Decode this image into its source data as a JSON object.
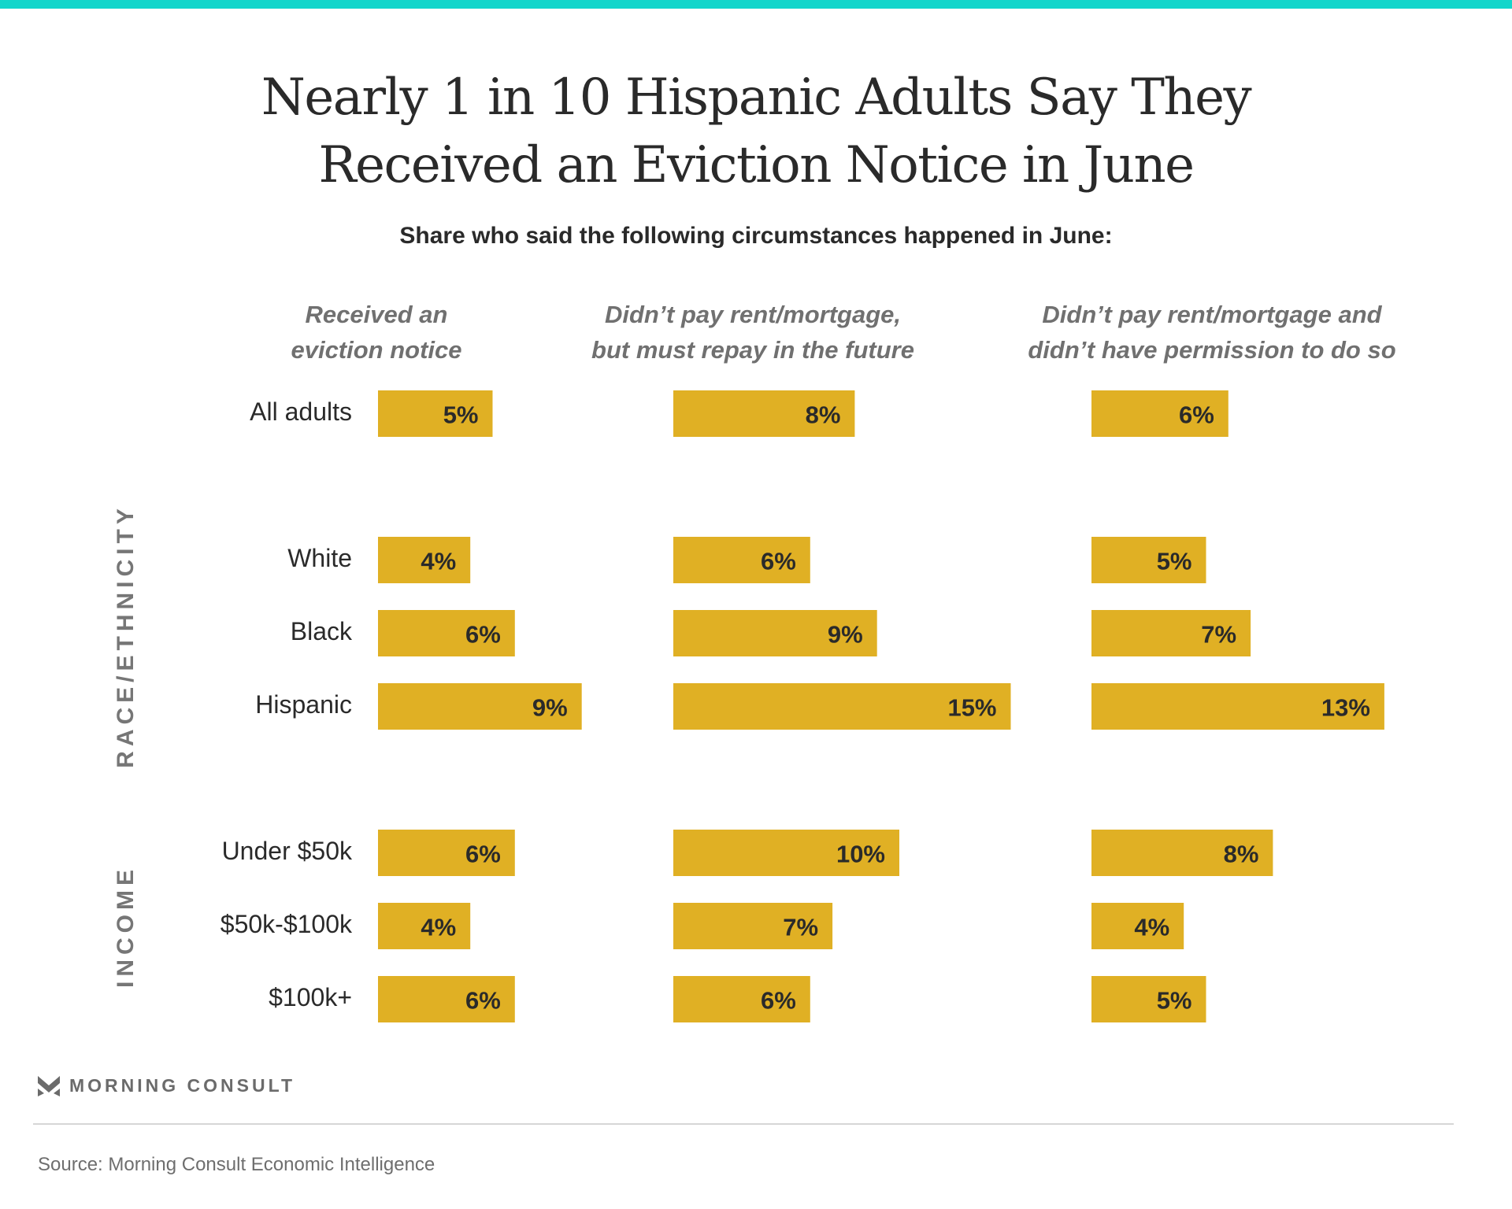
{
  "header": {
    "title_line1": "Nearly 1 in 10 Hispanic Adults Say They",
    "title_line2": "Received an Eviction Notice in June",
    "subtitle": "Share who said the following circumstances happened in June:"
  },
  "colors": {
    "accent_bar": "#12d6cb",
    "bar": "#e0b024"
  },
  "chart_data": {
    "type": "bar",
    "orientation": "horizontal",
    "title": "Nearly 1 in 10 Hispanic Adults Say They Received an Eviction Notice in June",
    "subtitle": "Share who said the following circumstances happened in June:",
    "categories": [
      "All adults",
      "White",
      "Black",
      "Hispanic",
      "Under $50k",
      "$50k-$100k",
      "$100k+"
    ],
    "groups": [
      {
        "name": "",
        "categories": [
          "All adults"
        ]
      },
      {
        "name": "RACE/ETHNICITY",
        "categories": [
          "White",
          "Black",
          "Hispanic"
        ]
      },
      {
        "name": "INCOME",
        "categories": [
          "Under $50k",
          "$50k-$100k",
          "$100k+"
        ]
      }
    ],
    "panels": [
      {
        "name": "Received an eviction notice",
        "header_lines": [
          "Received an",
          "eviction notice"
        ],
        "values": [
          5,
          4,
          6,
          9,
          6,
          4,
          6
        ],
        "labels": [
          "5%",
          "4%",
          "6%",
          "9%",
          "6%",
          "4%",
          "6%"
        ]
      },
      {
        "name": "Didn’t pay rent/mortgage, but must repay in the future",
        "header_lines": [
          "Didn’t pay rent/mortgage,",
          "but must repay in the future"
        ],
        "values": [
          8,
          6,
          9,
          15,
          10,
          7,
          6
        ],
        "labels": [
          "8%",
          "6%",
          "9%",
          "15%",
          "10%",
          "7%",
          "6%"
        ]
      },
      {
        "name": "Didn’t pay rent/mortgage and didn’t have permission to do so",
        "header_lines": [
          "Didn’t pay rent/mortgage and",
          "didn’t have permission to do so"
        ],
        "values": [
          6,
          5,
          7,
          13,
          8,
          4,
          5
        ],
        "labels": [
          "6%",
          "5%",
          "7%",
          "13%",
          "8%",
          "4%",
          "5%"
        ]
      }
    ],
    "unit": "%",
    "xlabel": "",
    "ylabel": "",
    "grid": false,
    "legend": "none"
  },
  "footer": {
    "logo_text": "MORNING CONSULT",
    "logo_icon": "morning-consult-chevron-icon",
    "source": "Source: Morning Consult Economic Intelligence"
  }
}
